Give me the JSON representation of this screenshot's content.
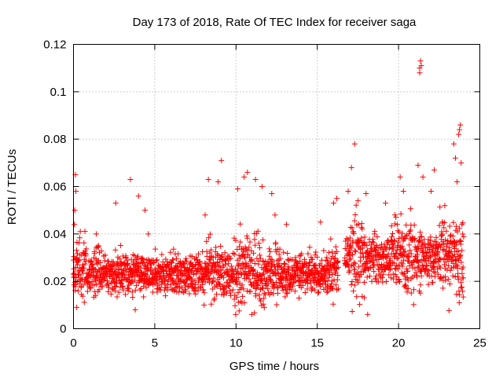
{
  "chart_data": {
    "type": "scatter",
    "title": "Day 173 of 2018, Rate Of TEC Index for receiver saga",
    "xlabel": "GPS time / hours",
    "ylabel": "ROTI / TECUs",
    "xlim": [
      0,
      25
    ],
    "ylim": [
      0,
      0.12
    ],
    "xticks": [
      0,
      5,
      10,
      15,
      20,
      25
    ],
    "xtick_labels": [
      "0",
      "5",
      "10",
      "15",
      "20",
      "25"
    ],
    "yticks": [
      0,
      0.02,
      0.04,
      0.06,
      0.08,
      0.1,
      0.12
    ],
    "ytick_labels": [
      "0",
      "0.02",
      "0.04",
      "0.06",
      "0.08",
      "0.1",
      "0.12"
    ],
    "grid": true,
    "marker": "plus",
    "color": "#ff0000",
    "x_step_hours": 0.0333,
    "series": [
      {
        "name": "ROTI",
        "x_start": 0.0,
        "x_end": 16.3,
        "baseline": 0.022,
        "spread": 0.01
      },
      {
        "name": "ROTI",
        "x_start": 16.7,
        "x_end": 24.0,
        "baseline": 0.028,
        "spread": 0.013
      }
    ],
    "notable_points": [
      {
        "x": 0.05,
        "y": 0.044
      },
      {
        "x": 0.08,
        "y": 0.05
      },
      {
        "x": 0.12,
        "y": 0.065
      },
      {
        "x": 0.15,
        "y": 0.058
      },
      {
        "x": 0.2,
        "y": 0.009
      },
      {
        "x": 1.4,
        "y": 0.04
      },
      {
        "x": 2.6,
        "y": 0.053
      },
      {
        "x": 3.5,
        "y": 0.063
      },
      {
        "x": 4.0,
        "y": 0.056
      },
      {
        "x": 3.8,
        "y": 0.008
      },
      {
        "x": 4.4,
        "y": 0.05
      },
      {
        "x": 4.6,
        "y": 0.04
      },
      {
        "x": 8.1,
        "y": 0.048
      },
      {
        "x": 8.3,
        "y": 0.063
      },
      {
        "x": 8.9,
        "y": 0.062
      },
      {
        "x": 9.1,
        "y": 0.071
      },
      {
        "x": 10.1,
        "y": 0.059
      },
      {
        "x": 10.5,
        "y": 0.064
      },
      {
        "x": 10.7,
        "y": 0.066
      },
      {
        "x": 11.2,
        "y": 0.063
      },
      {
        "x": 11.6,
        "y": 0.06
      },
      {
        "x": 12.2,
        "y": 0.057
      },
      {
        "x": 12.4,
        "y": 0.048
      },
      {
        "x": 13.1,
        "y": 0.044
      },
      {
        "x": 15.2,
        "y": 0.045
      },
      {
        "x": 16.0,
        "y": 0.053
      },
      {
        "x": 16.2,
        "y": 0.055
      },
      {
        "x": 16.9,
        "y": 0.058
      },
      {
        "x": 17.1,
        "y": 0.068
      },
      {
        "x": 17.3,
        "y": 0.078
      },
      {
        "x": 17.5,
        "y": 0.054
      },
      {
        "x": 18.0,
        "y": 0.057
      },
      {
        "x": 18.1,
        "y": 0.006
      },
      {
        "x": 19.2,
        "y": 0.053
      },
      {
        "x": 20.1,
        "y": 0.064
      },
      {
        "x": 20.3,
        "y": 0.058
      },
      {
        "x": 21.2,
        "y": 0.069
      },
      {
        "x": 21.3,
        "y": 0.108
      },
      {
        "x": 21.3,
        "y": 0.11
      },
      {
        "x": 21.35,
        "y": 0.113
      },
      {
        "x": 21.4,
        "y": 0.111
      },
      {
        "x": 21.5,
        "y": 0.064
      },
      {
        "x": 22.0,
        "y": 0.058
      },
      {
        "x": 22.2,
        "y": 0.067
      },
      {
        "x": 23.4,
        "y": 0.078
      },
      {
        "x": 23.5,
        "y": 0.072
      },
      {
        "x": 23.6,
        "y": 0.062
      },
      {
        "x": 23.7,
        "y": 0.082
      },
      {
        "x": 23.75,
        "y": 0.084
      },
      {
        "x": 23.8,
        "y": 0.086
      },
      {
        "x": 23.85,
        "y": 0.07
      },
      {
        "x": 23.9,
        "y": 0.044
      }
    ]
  }
}
